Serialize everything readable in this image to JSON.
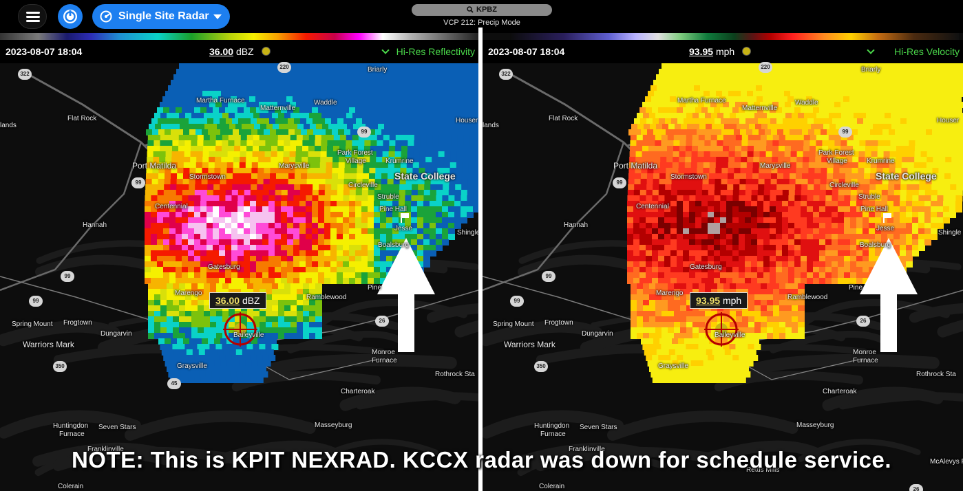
{
  "toolbar": {
    "menu_icon": "hamburger-icon",
    "power_icon": "power-icon",
    "mode_label": "Single Site Radar",
    "mode_icon": "radar-sweep-icon",
    "site_label": "KPBZ",
    "site_icon": "search-icon",
    "vcp_label": "VCP 212: Precip Mode"
  },
  "left_panel": {
    "timestamp": "2023-08-07 18:04",
    "readout_value": "36.00",
    "readout_unit": "dBZ",
    "product": "Hi-Res Reflectivity",
    "tooltip_value": "36.00",
    "tooltip_unit": "dBZ"
  },
  "right_panel": {
    "timestamp": "2023-08-07 18:04",
    "readout_value": "93.95",
    "readout_unit": "mph",
    "product": "Hi-Res Velocity",
    "tooltip_value": "93.95",
    "tooltip_unit": "mph"
  },
  "places": {
    "briarly": "Briarly",
    "martha_furnace": "Martha Furnace",
    "matternville": "Matternville",
    "waddle": "Waddle",
    "flat_rock": "Flat Rock",
    "houser": "Houser",
    "lands": "lands",
    "port_matilda": "Port Matilda",
    "park_forest": "Park Forest",
    "village": "Village",
    "krumrine": "Krumrine",
    "marysville": "Marysville",
    "stormstown": "Stormstown",
    "state_college": "State College",
    "circleville": "Circleville",
    "centennial": "Centennial",
    "struble": "Struble",
    "pine_hall": "Pine Hall",
    "hannah": "Hannah",
    "jesse": "Jesse",
    "shingle": "Shingle",
    "boalsburg": "Boalsburg",
    "gatesburg": "Gatesburg",
    "pine": "Pine",
    "marengo": "Marengo",
    "ramblewood": "Ramblewood",
    "spring_mount": "Spring Mount",
    "frogtown": "Frogtown",
    "dungarvin": "Dungarvin",
    "baileyville": "Baileyville",
    "warriors_mark": "Warriors Mark",
    "monroe": "Monroe",
    "furnace": "Furnace",
    "rothrock": "Rothrock Sta",
    "graysville": "Graysville",
    "charteroak": "Charteroak",
    "huntingdon": "Huntingdon",
    "seven_stars": "Seven Stars",
    "franklinville": "Franklinville",
    "masseyburg": "Masseyburg",
    "colerain": "Colerain",
    "mcalevys": "McAlevys Fo",
    "rettis_mills": "Rettis Mills"
  },
  "shields": {
    "r322": "322",
    "r220": "220",
    "r99a": "99",
    "r99b": "99",
    "r99c": "99",
    "r26": "26",
    "r350": "350",
    "r45": "45",
    "r26b": "26"
  },
  "note": "NOTE: This is KPIT NEXRAD. KCCX radar was down for schedule service.",
  "colors": {
    "accent": "#1d7ff0",
    "product_text": "#4ad84a",
    "background": "#0d0d0d"
  }
}
